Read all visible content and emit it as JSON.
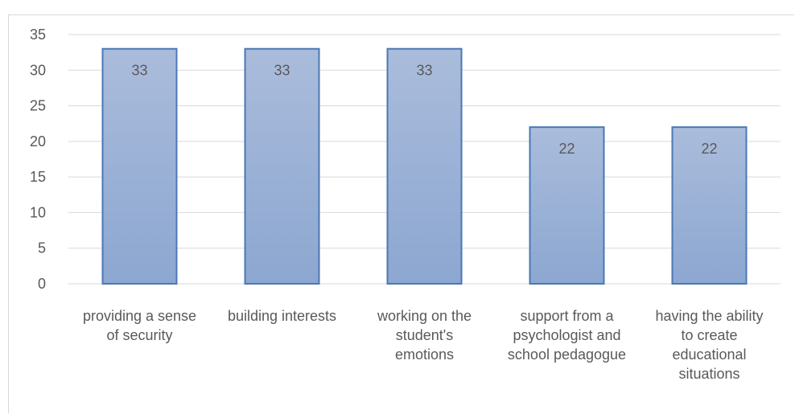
{
  "chart_data": {
    "type": "bar",
    "categories": [
      [
        "providing a sense",
        "of security"
      ],
      [
        "building interests"
      ],
      [
        "working on the",
        "student's",
        "emotions"
      ],
      [
        "support from a",
        "psychologist and",
        "school pedagogue"
      ],
      [
        "having the ability",
        "to create",
        "educational",
        "situations"
      ]
    ],
    "values": [
      33,
      33,
      33,
      22,
      22
    ],
    "data_labels": [
      "33",
      "33",
      "33",
      "22",
      "22"
    ],
    "ylim": [
      0,
      35
    ],
    "yticks": [
      "0",
      "5",
      "10",
      "15",
      "20",
      "25",
      "30",
      "35"
    ],
    "grid": true,
    "legend": "none",
    "colors": {
      "bar_top": "#aabcdb",
      "bar_bottom": "#8ca7d1",
      "bar_border": "#4a78b5",
      "grid": "#d9d9d9",
      "text": "#595959"
    }
  }
}
